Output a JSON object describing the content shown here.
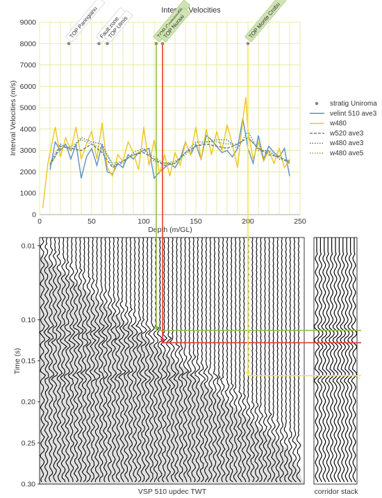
{
  "chart_data": [
    {
      "type": "line",
      "title": "Interval Velocities",
      "xlabel": "Depth (m/GL)",
      "ylabel": "Interval Velocities (m/s)",
      "xlim": [
        0,
        250
      ],
      "ylim": [
        0,
        9000
      ],
      "xticks": [
        0,
        50,
        100,
        150,
        200,
        250
      ],
      "yticks": [
        0,
        1000,
        2000,
        3000,
        4000,
        5000,
        6000,
        7000,
        8000,
        9000
      ],
      "grid": true,
      "legend_position": "right",
      "strat_markers": [
        {
          "label": "TOP Paringianu",
          "depth": 28,
          "velocity": 8000,
          "highlight": false
        },
        {
          "label": "Fault zone",
          "depth": 57,
          "velocity": 8000,
          "highlight": false
        },
        {
          "label": "TOP Ulmis",
          "depth": 65,
          "velocity": 8000,
          "highlight": false
        },
        {
          "label": "TOP Comendili",
          "depth": 112,
          "velocity": 8000,
          "highlight": true
        },
        {
          "label": "TOP Nuraxi",
          "depth": 118,
          "velocity": 8000,
          "highlight": true
        },
        {
          "label": "TOP Monte Crobu",
          "depth": 200,
          "velocity": 8000,
          "highlight": true
        }
      ],
      "series": [
        {
          "name": "stratig Uniroma",
          "style": "marker",
          "color": "#888888"
        },
        {
          "name": "velint 510 ave3",
          "style": "solid",
          "color": "#5b8ec9",
          "x": [
            10,
            15,
            20,
            25,
            30,
            35,
            40,
            45,
            50,
            55,
            60,
            65,
            70,
            75,
            80,
            85,
            90,
            95,
            100,
            105,
            110,
            115,
            120,
            125,
            130,
            135,
            140,
            145,
            150,
            155,
            160,
            165,
            170,
            175,
            180,
            185,
            190,
            195,
            200,
            205,
            210,
            215,
            220,
            225,
            230,
            235,
            240
          ],
          "y": [
            2100,
            3400,
            3000,
            3300,
            2600,
            3300,
            1700,
            2700,
            3100,
            2300,
            3300,
            2000,
            1900,
            2400,
            2200,
            2800,
            2600,
            2900,
            3000,
            3100,
            1700,
            2000,
            2200,
            2400,
            2200,
            2600,
            3400,
            2800,
            3300,
            2600,
            3700,
            3500,
            3200,
            2900,
            3000,
            2700,
            3100,
            4500,
            3100,
            2400,
            3700,
            2600,
            3200,
            2900,
            2700,
            3100,
            1800
          ]
        },
        {
          "name": "w480",
          "style": "solid",
          "color": "#f0c419",
          "x": [
            3,
            8,
            15,
            20,
            25,
            30,
            35,
            40,
            45,
            50,
            55,
            60,
            65,
            70,
            75,
            80,
            85,
            90,
            95,
            100,
            105,
            110,
            115,
            120,
            125,
            130,
            135,
            140,
            145,
            150,
            155,
            160,
            165,
            170,
            175,
            180,
            185,
            190,
            195,
            198,
            200,
            205,
            210,
            215,
            220,
            225,
            230,
            235,
            240
          ],
          "y": [
            300,
            2400,
            4100,
            2700,
            3600,
            3000,
            4100,
            2600,
            3300,
            3900,
            2600,
            4300,
            2200,
            1800,
            2800,
            2500,
            3400,
            2900,
            2100,
            4100,
            2300,
            3500,
            1900,
            2800,
            1800,
            2900,
            2300,
            3400,
            2800,
            4100,
            2600,
            4000,
            2800,
            3900,
            3000,
            4200,
            3300,
            2200,
            4400,
            5500,
            3900,
            2600,
            3400,
            2500,
            3000,
            2400,
            3100,
            2200,
            2600
          ]
        },
        {
          "name": "w520 ave3",
          "style": "dashed",
          "color": "#7a7a7a",
          "x": [
            10,
            20,
            30,
            40,
            50,
            60,
            70,
            80,
            90,
            100,
            110,
            120,
            130,
            140,
            150,
            160,
            170,
            180,
            190,
            200,
            210,
            220,
            230,
            240
          ],
          "y": [
            2300,
            3200,
            3100,
            3000,
            3300,
            2900,
            2200,
            2500,
            2800,
            2900,
            2600,
            2300,
            2400,
            2900,
            3200,
            3300,
            3200,
            3100,
            3300,
            3600,
            3100,
            2800,
            2700,
            2400
          ]
        },
        {
          "name": "w480 ave3",
          "style": "dotted",
          "color": "#4a7ab5",
          "x": [
            10,
            20,
            30,
            40,
            50,
            60,
            70,
            80,
            90,
            100,
            110,
            120,
            130,
            140,
            150,
            160,
            170,
            180,
            190,
            200,
            210,
            220,
            230,
            240
          ],
          "y": [
            2400,
            3300,
            3000,
            3600,
            3400,
            3300,
            2300,
            2400,
            2900,
            3100,
            2500,
            2400,
            2400,
            2900,
            3400,
            3400,
            3500,
            3500,
            3100,
            3900,
            3000,
            3000,
            2600,
            2500
          ]
        },
        {
          "name": "w480 ave5",
          "style": "dotted",
          "color": "#7aa83c",
          "x": [
            10,
            20,
            30,
            40,
            50,
            60,
            70,
            80,
            90,
            100,
            110,
            120,
            130,
            140,
            150,
            160,
            170,
            180,
            190,
            200,
            210,
            220,
            230,
            240
          ],
          "y": [
            2300,
            3100,
            3200,
            3500,
            3300,
            3100,
            2400,
            2500,
            2800,
            3000,
            2700,
            2400,
            2500,
            2800,
            3200,
            3400,
            3400,
            3300,
            3300,
            3600,
            3100,
            2900,
            2700,
            2500
          ]
        }
      ]
    },
    {
      "type": "other",
      "title": "VSP 510 updec TWT",
      "ylabel": "Time (s)",
      "ylim": [
        0.3,
        0
      ],
      "yticks": [
        0.01,
        0.1,
        0.15,
        0.2,
        0.25,
        0.3
      ],
      "ytick_labels": [
        "0.01",
        "0.10",
        "0.15",
        "0.20",
        "0.25",
        "0.30"
      ],
      "corridor_stack_label": "corridor stack",
      "horizon_picks": [
        {
          "name": "TOP Comendili",
          "time": 0.113,
          "color": "#8bc34a"
        },
        {
          "name": "TOP Nuraxi",
          "time": 0.128,
          "color": "#e53935"
        },
        {
          "name": "TOP Monte Crobu",
          "time": 0.168,
          "color": "#f5e63b"
        }
      ]
    }
  ]
}
